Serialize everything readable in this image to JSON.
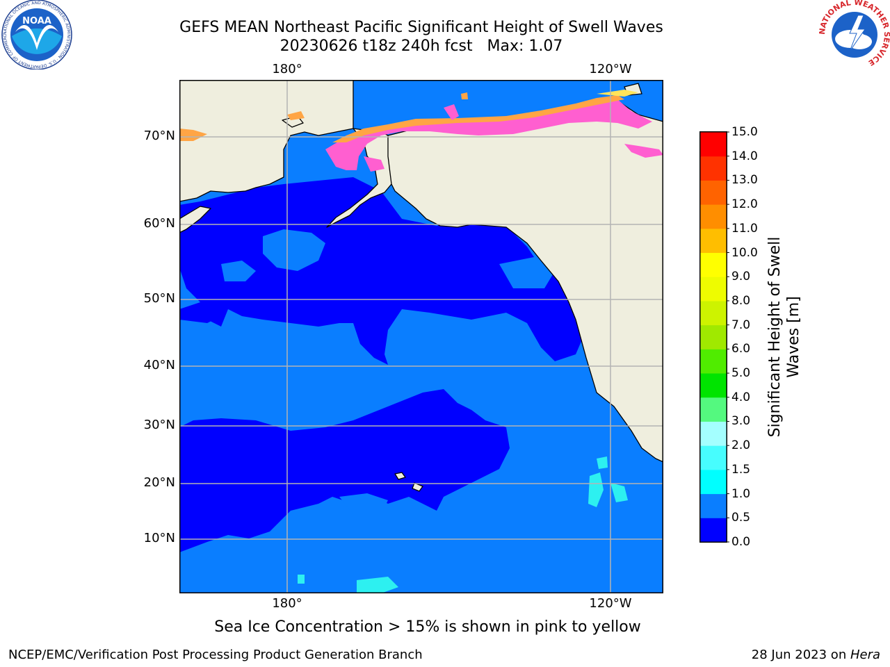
{
  "title_line1": "GEFS MEAN Northeast Pacific Significant Height of Swell Waves",
  "title_line2": "20230626 t18z 240h fcst   Max: 1.07",
  "lon_labels_top": [
    "180°",
    "120°W"
  ],
  "lon_labels_bottom": [
    "180°",
    "120°W"
  ],
  "lat_labels": [
    "70°N",
    "60°N",
    "50°N",
    "40°N",
    "30°N",
    "20°N",
    "10°N"
  ],
  "colorbar": {
    "label_line1": "Significant Height of Swell",
    "label_line2": "Waves [m]",
    "ticks": [
      "0.0",
      "0.5",
      "1.0",
      "1.5",
      "2.0",
      "3.0",
      "4.0",
      "5.0",
      "6.0",
      "7.0",
      "8.0",
      "9.0",
      "10.0",
      "11.0",
      "12.0",
      "13.0",
      "14.0",
      "15.0"
    ],
    "colors": [
      "#0000ff",
      "#0a7eff",
      "#00ffff",
      "#47fdfe",
      "#a4ffff",
      "#54f97f",
      "#00e400",
      "#50ec00",
      "#a0e900",
      "#cdf300",
      "#eefc00",
      "#ffff00",
      "#ffbe00",
      "#ff8e00",
      "#ff6300",
      "#ff3200",
      "#ff0000"
    ]
  },
  "map_colors": {
    "land": "#efeede",
    "ocean_low": "#0000ff",
    "ocean_mid": "#0a7eff",
    "ice_pink": "#ff5fd0",
    "ice_orange": "#ffa545",
    "ice_yellow": "#ffe45a",
    "gridline": "#b4b4b4"
  },
  "note": "Sea Ice Concentration > 15% is shown in pink to yellow",
  "credit": "NCEP/EMC/Verification Post Processing Product Generation Branch",
  "stamp_date": "28 Jun 2023 on ",
  "stamp_host": "Hera",
  "noaa_logo": {
    "text": "NOAA",
    "ring_text": "NATIONAL OCEANIC AND ATMOSPHERIC ADMINISTRATION · U.S. DEPARTMENT OF COMMERCE"
  },
  "nws_logo": {
    "ring_text": "NATIONAL WEATHER SERVICE"
  }
}
